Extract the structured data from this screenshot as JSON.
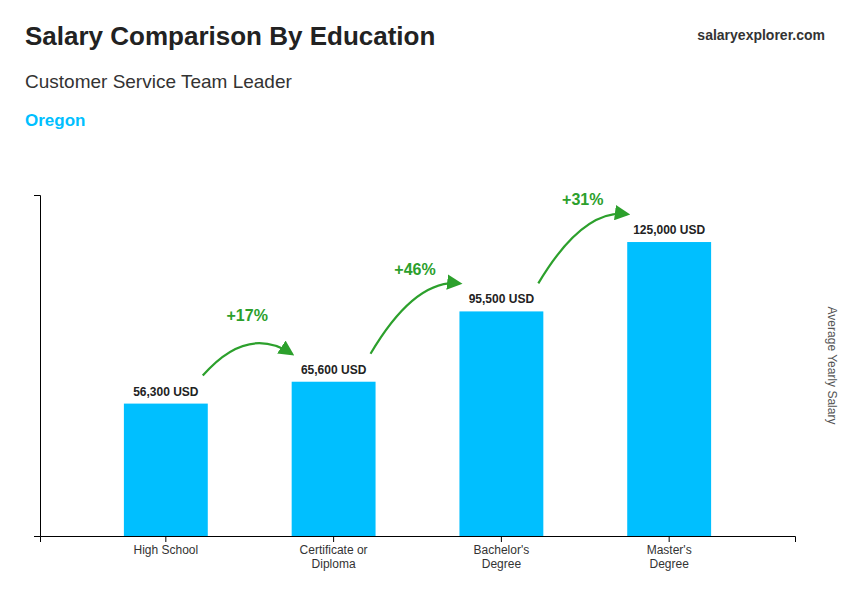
{
  "chart_data": {
    "type": "bar",
    "title": "Salary Comparison By Education",
    "subtitle": [
      "Customer Service Team Leader",
      "Oregon"
    ],
    "source": "salaryexplorer.com",
    "ylabel": "Average Yearly Salary",
    "categories": [
      "High School",
      "Certificate or\nDiploma",
      "Bachelor's\nDegree",
      "Master's\nDegree"
    ],
    "values": [
      56300,
      65600,
      95500,
      125000
    ],
    "value_labels": [
      "56,300 USD",
      "65,600 USD",
      "95,500 USD",
      "125,000 USD"
    ],
    "data_labels": true,
    "annotations": [
      "+17%",
      "+46%",
      "+31%"
    ],
    "color": "#00BFFF",
    "ylim": [
      0,
      145000
    ],
    "yticks": [],
    "tick_labels": "x",
    "grid": false
  }
}
